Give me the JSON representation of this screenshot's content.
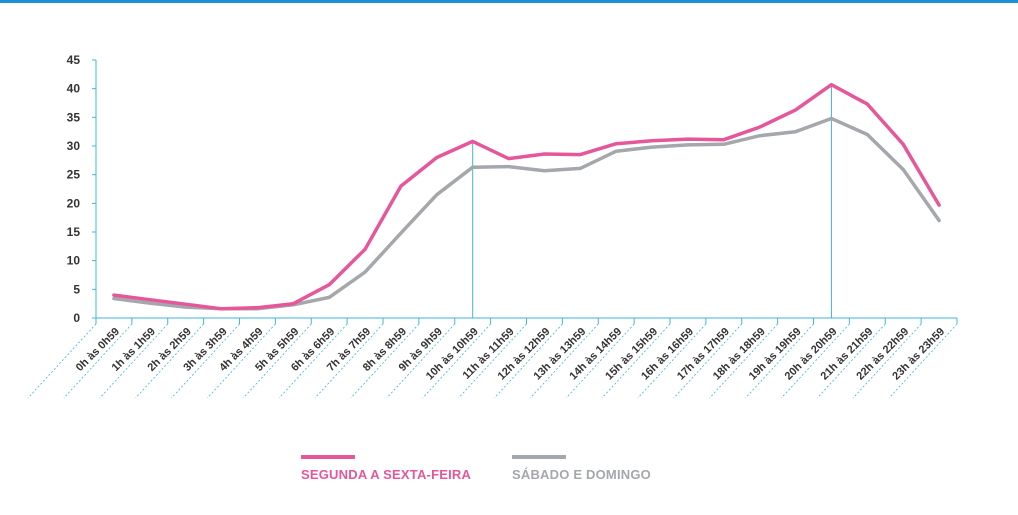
{
  "colors": {
    "weekday": "#e5579a",
    "weekend": "#a4a7ab",
    "axis": "#42b4df",
    "frame": "#1e90d6",
    "text": "#333333"
  },
  "chart_data": {
    "type": "line",
    "title": "",
    "xlabel": "",
    "ylabel": "",
    "ylim": [
      0,
      45
    ],
    "yticks": [
      0,
      5,
      10,
      15,
      20,
      25,
      30,
      35,
      40,
      45
    ],
    "grid": false,
    "legend_position": "bottom",
    "categories": [
      "0h às 0h59",
      "1h às 1h59",
      "2h às 2h59",
      "3h às 3h59",
      "4h às 4h59",
      "5h às 5h59",
      "6h às 6h59",
      "7h às 7h59",
      "8h às 8h59",
      "9h às 9h59",
      "10h às 10h59",
      "11h às 11h59",
      "12h às 12h59",
      "13h às 13h59",
      "14h às 14h59",
      "15h às 15h59",
      "16h às 16h59",
      "17h às 17h59",
      "18h às 18h59",
      "19h às 19h59",
      "20h às 20h59",
      "21h às 21h59",
      "22h às 22h59",
      "23h às 23h59"
    ],
    "series": [
      {
        "name": "SEGUNDA A SEXTA-FEIRA",
        "color": "#e5579a",
        "values": [
          4,
          3.2,
          2.4,
          1.6,
          1.8,
          2.5,
          5.8,
          12,
          23,
          28,
          30.8,
          27.8,
          28.6,
          28.5,
          30.4,
          30.9,
          31.2,
          31.1,
          33.3,
          36.3,
          40.7,
          37.3,
          30.3,
          19.7
        ]
      },
      {
        "name": "SÁBADO E DOMINGO",
        "color": "#a4a7ab",
        "values": [
          3.4,
          2.6,
          1.9,
          1.6,
          1.6,
          2.3,
          3.6,
          8,
          14.8,
          21.5,
          26.3,
          26.4,
          25.7,
          26.1,
          29.1,
          29.8,
          30.2,
          30.3,
          31.8,
          32.5,
          34.8,
          32,
          25.9,
          17
        ]
      }
    ],
    "reference_lines_at": [
      "10h às 10h59",
      "20h às 20h59"
    ]
  },
  "legend": {
    "weekday_label": "SEGUNDA A SEXTA-FEIRA",
    "weekend_label": "SÁBADO E DOMINGO"
  }
}
